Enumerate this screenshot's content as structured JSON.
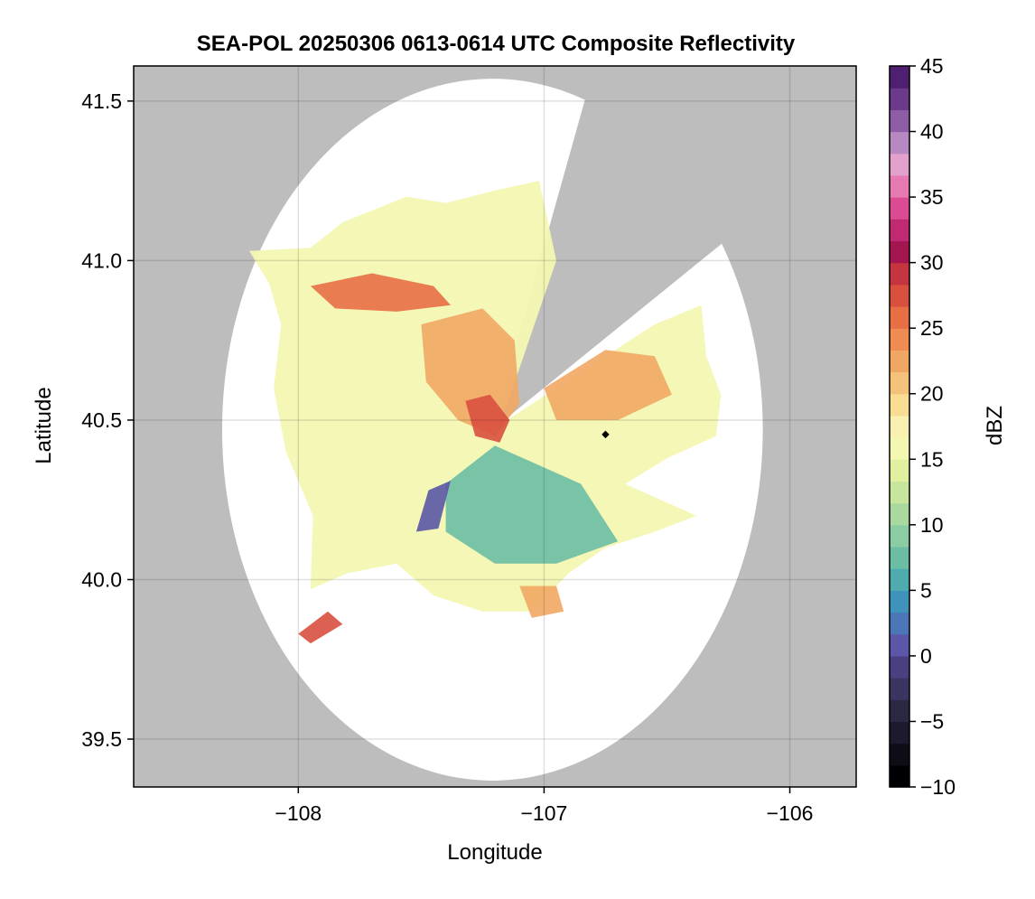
{
  "chart_data": {
    "type": "heatmap",
    "title": "SEA-POL 20250306 0613-0614 UTC Composite Reflectivity",
    "xlabel": "Longitude",
    "ylabel": "Latitude",
    "xlim": [
      -108.67,
      -105.73
    ],
    "ylim": [
      39.35,
      41.61
    ],
    "xticks": [
      -108,
      -107,
      -106
    ],
    "xtick_labels": [
      "−108",
      "−107",
      "−106"
    ],
    "yticks": [
      39.5,
      40.0,
      40.5,
      41.0,
      41.5
    ],
    "ytick_labels": [
      "39.5",
      "40.0",
      "40.5",
      "41.0",
      "41.5"
    ],
    "grid": true,
    "background_color": "#bdbdbd",
    "coverage_color": "#ffffff",
    "radar": {
      "center_lon": -107.21,
      "center_lat": 40.47,
      "range_deg": 1.1,
      "blocked_sector_deg": [
        20,
        58
      ]
    },
    "marker": {
      "lon": -106.75,
      "lat": 40.455,
      "color": "#000000"
    },
    "colorbar": {
      "label": "dBZ",
      "vmin": -10,
      "vmax": 45,
      "step": 2.5,
      "ticks": [
        -10,
        -5,
        0,
        5,
        10,
        15,
        20,
        25,
        30,
        35,
        40,
        45
      ],
      "tick_labels": [
        "−10",
        "−5",
        "0",
        "5",
        "10",
        "15",
        "20",
        "25",
        "30",
        "35",
        "40",
        "45"
      ],
      "colors": [
        "#000004",
        "#0d0c17",
        "#1c1a2c",
        "#2b2844",
        "#3a3460",
        "#4a3f80",
        "#5b56a7",
        "#4b76b7",
        "#3f93bb",
        "#4eabae",
        "#6bbda4",
        "#8acda2",
        "#aad99f",
        "#c7e59c",
        "#e0f0a0",
        "#f3f7b2",
        "#f8f0b0",
        "#f8dc93",
        "#f4c27a",
        "#f1a764",
        "#ee8c52",
        "#e86e45",
        "#d9503f",
        "#c4353f",
        "#a2154f",
        "#c02a72",
        "#da4b93",
        "#e679b1",
        "#e3a0cc",
        "#b788c2",
        "#8f5da5",
        "#6c3a8a",
        "#4f1f72"
      ]
    },
    "echo_regions": [
      {
        "name": "main-echo",
        "dbz": 15,
        "polygon": [
          [
            -108.2,
            41.03
          ],
          [
            -107.95,
            41.04
          ],
          [
            -107.82,
            41.12
          ],
          [
            -107.56,
            41.2
          ],
          [
            -107.4,
            41.18
          ],
          [
            -107.2,
            41.22
          ],
          [
            -107.02,
            41.25
          ],
          [
            -106.95,
            41.0
          ],
          [
            -107.15,
            40.55
          ],
          [
            -107.19,
            40.48
          ],
          [
            -106.85,
            40.65
          ],
          [
            -106.55,
            40.8
          ],
          [
            -106.36,
            40.86
          ],
          [
            -106.34,
            40.7
          ],
          [
            -106.28,
            40.58
          ],
          [
            -106.3,
            40.45
          ],
          [
            -106.5,
            40.38
          ],
          [
            -106.67,
            40.3
          ],
          [
            -106.38,
            40.2
          ],
          [
            -106.55,
            40.15
          ],
          [
            -106.75,
            40.1
          ],
          [
            -106.9,
            40.02
          ],
          [
            -107.05,
            39.9
          ],
          [
            -107.25,
            39.9
          ],
          [
            -107.45,
            39.95
          ],
          [
            -107.6,
            40.05
          ],
          [
            -107.8,
            40.02
          ],
          [
            -107.95,
            39.97
          ],
          [
            -107.94,
            40.2
          ],
          [
            -108.05,
            40.4
          ],
          [
            -108.1,
            40.6
          ],
          [
            -108.07,
            40.8
          ],
          [
            -108.12,
            40.93
          ]
        ]
      },
      {
        "name": "northwest-band",
        "dbz": 25,
        "polygon": [
          [
            -107.95,
            40.92
          ],
          [
            -107.7,
            40.96
          ],
          [
            -107.45,
            40.92
          ],
          [
            -107.38,
            40.86
          ],
          [
            -107.6,
            40.84
          ],
          [
            -107.85,
            40.85
          ]
        ]
      },
      {
        "name": "central-core",
        "dbz": 22,
        "polygon": [
          [
            -107.5,
            40.8
          ],
          [
            -107.25,
            40.85
          ],
          [
            -107.12,
            40.75
          ],
          [
            -107.1,
            40.55
          ],
          [
            -107.2,
            40.45
          ],
          [
            -107.35,
            40.5
          ],
          [
            -107.48,
            40.62
          ]
        ]
      },
      {
        "name": "radar-near-core",
        "dbz": 27,
        "polygon": [
          [
            -107.32,
            40.56
          ],
          [
            -107.22,
            40.58
          ],
          [
            -107.14,
            40.5
          ],
          [
            -107.18,
            40.43
          ],
          [
            -107.28,
            40.45
          ]
        ]
      },
      {
        "name": "east-sector",
        "dbz": 22,
        "polygon": [
          [
            -107.0,
            40.6
          ],
          [
            -106.75,
            40.72
          ],
          [
            -106.55,
            40.7
          ],
          [
            -106.48,
            40.58
          ],
          [
            -106.7,
            40.5
          ],
          [
            -106.95,
            40.5
          ]
        ]
      },
      {
        "name": "south-low-echo",
        "dbz": 8,
        "polygon": [
          [
            -107.4,
            40.3
          ],
          [
            -107.2,
            40.42
          ],
          [
            -106.85,
            40.3
          ],
          [
            -106.7,
            40.12
          ],
          [
            -106.95,
            40.05
          ],
          [
            -107.2,
            40.05
          ],
          [
            -107.4,
            40.15
          ]
        ]
      },
      {
        "name": "weak-echo-streak",
        "dbz": 0,
        "polygon": [
          [
            -107.47,
            40.28
          ],
          [
            -107.38,
            40.31
          ],
          [
            -107.43,
            40.16
          ],
          [
            -107.52,
            40.15
          ]
        ]
      },
      {
        "name": "southwest-cell",
        "dbz": 27,
        "polygon": [
          [
            -108.0,
            39.83
          ],
          [
            -107.88,
            39.9
          ],
          [
            -107.82,
            39.86
          ],
          [
            -107.95,
            39.8
          ]
        ]
      },
      {
        "name": "south-cell",
        "dbz": 22,
        "polygon": [
          [
            -107.1,
            39.98
          ],
          [
            -106.95,
            39.98
          ],
          [
            -106.92,
            39.9
          ],
          [
            -107.05,
            39.88
          ]
        ]
      }
    ]
  }
}
